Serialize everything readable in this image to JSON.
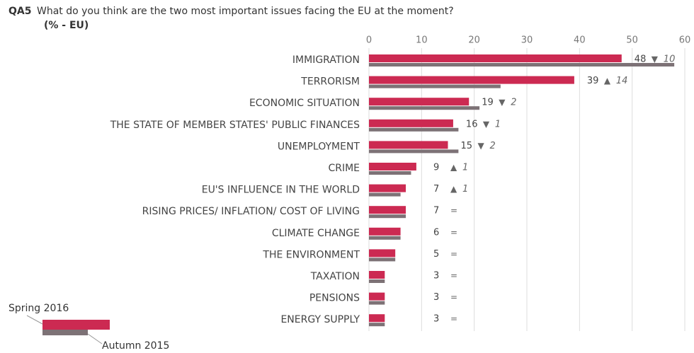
{
  "chart_data": {
    "type": "bar",
    "orientation": "horizontal",
    "question_id": "QA5",
    "title": "What do you think are the two most important issues facing the EU at the moment?",
    "subtitle": "(% - EU)",
    "categories": [
      "IMMIGRATION",
      "TERRORISM",
      "ECONOMIC SITUATION",
      "THE STATE OF MEMBER STATES' PUBLIC FINANCES",
      "UNEMPLOYMENT",
      "CRIME",
      "EU'S INFLUENCE IN THE WORLD",
      "RISING PRICES/ INFLATION/ COST OF LIVING",
      "CLIMATE CHANGE",
      "THE ENVIRONMENT",
      "TAXATION",
      "PENSIONS",
      "ENERGY SUPPLY"
    ],
    "series": [
      {
        "name": "Spring 2016",
        "color": "#cc2a52",
        "values": [
          48,
          39,
          19,
          16,
          15,
          9,
          7,
          7,
          6,
          5,
          3,
          3,
          3
        ]
      },
      {
        "name": "Autumn 2015",
        "color": "#7d7276",
        "values": [
          58,
          25,
          21,
          17,
          17,
          8,
          6,
          7,
          6,
          5,
          3,
          3,
          3
        ]
      }
    ],
    "change_direction": [
      "▼",
      "▲",
      "▼",
      "▼",
      "▼",
      "▲",
      "▲",
      "=",
      "=",
      "=",
      "=",
      "=",
      "="
    ],
    "change": [
      10,
      14,
      2,
      1,
      2,
      1,
      1,
      null,
      null,
      null,
      null,
      null,
      null
    ],
    "xlim": [
      0,
      60
    ],
    "xticks": [
      0,
      10,
      20,
      30,
      40,
      50,
      60
    ],
    "grid": true
  }
}
